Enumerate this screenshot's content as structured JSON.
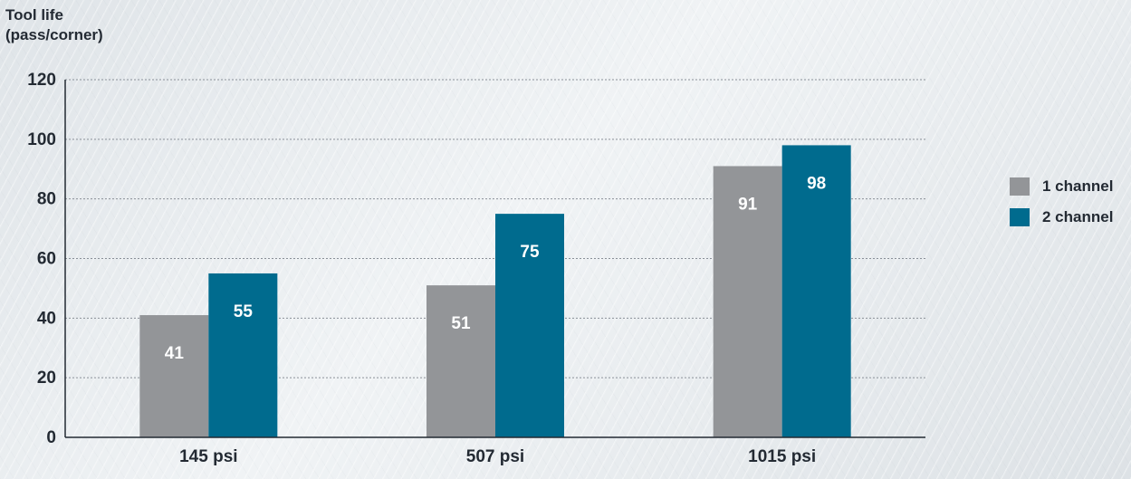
{
  "chart_data": {
    "type": "bar",
    "ylabel": "Tool life\n(pass/corner)",
    "xlabel": "",
    "title": "",
    "categories": [
      "145 psi",
      "507 psi",
      "1015 psi"
    ],
    "series": [
      {
        "name": "1 channel",
        "values": [
          41,
          51,
          91
        ],
        "color": "#939598"
      },
      {
        "name": "2 channel",
        "values": [
          55,
          75,
          98
        ],
        "color": "#006b8e"
      }
    ],
    "ylim": [
      0,
      120
    ],
    "yticks": [
      0,
      20,
      40,
      60,
      80,
      100,
      120
    ],
    "grid": true,
    "legend_position": "right"
  }
}
